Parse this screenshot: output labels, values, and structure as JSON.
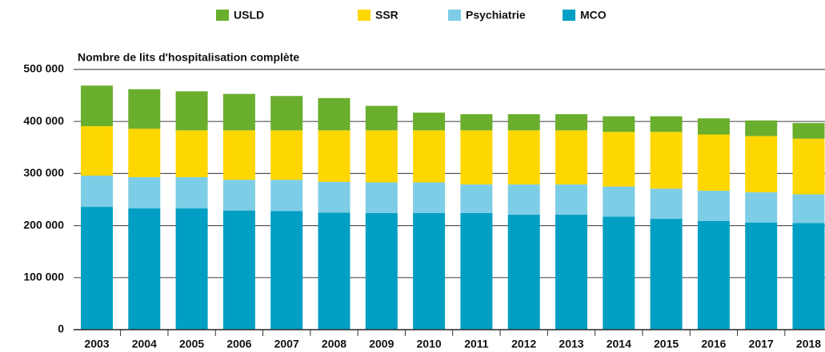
{
  "chart_data": {
    "type": "stacked_bar",
    "y_axis_label": "Nombre de lits d'hospitalisation complète",
    "categories": [
      "2003",
      "2004",
      "2005",
      "2006",
      "2007",
      "2008",
      "2009",
      "2010",
      "2011",
      "2012",
      "2013",
      "2014",
      "2015",
      "2016",
      "2017",
      "2018"
    ],
    "series": [
      {
        "name": "MCO",
        "color": "#009fc3",
        "values": [
          236000,
          233000,
          233000,
          229000,
          228000,
          225000,
          224000,
          224000,
          224000,
          221000,
          221000,
          217000,
          213000,
          209000,
          206000,
          205000
        ]
      },
      {
        "name": "Psychiatrie",
        "color": "#7ecde6",
        "values": [
          60000,
          60000,
          60000,
          59000,
          60000,
          59000,
          59000,
          59000,
          55000,
          58000,
          58000,
          58000,
          58000,
          58000,
          58000,
          55000
        ]
      },
      {
        "name": "SSR",
        "color": "#ffd700",
        "values": [
          95000,
          93000,
          90000,
          95000,
          95000,
          99000,
          100000,
          100000,
          104000,
          104000,
          104000,
          105000,
          109000,
          108000,
          108000,
          107000
        ]
      },
      {
        "name": "USLD",
        "color": "#6aae2e",
        "values": [
          78000,
          76000,
          75000,
          70000,
          66000,
          62000,
          47000,
          34000,
          31000,
          31000,
          31000,
          30000,
          30000,
          31000,
          30000,
          30000
        ]
      }
    ],
    "ylim": [
      0,
      500000
    ],
    "yticks": [
      0,
      {
        "value": 100000,
        "label": "100 000"
      },
      {
        "value": 200000,
        "label": "200 000"
      },
      {
        "value": 300000,
        "label": "300 000"
      },
      {
        "value": 400000,
        "label": "400 000"
      },
      {
        "value": 500000,
        "label": "500 000"
      }
    ],
    "grid": true
  }
}
